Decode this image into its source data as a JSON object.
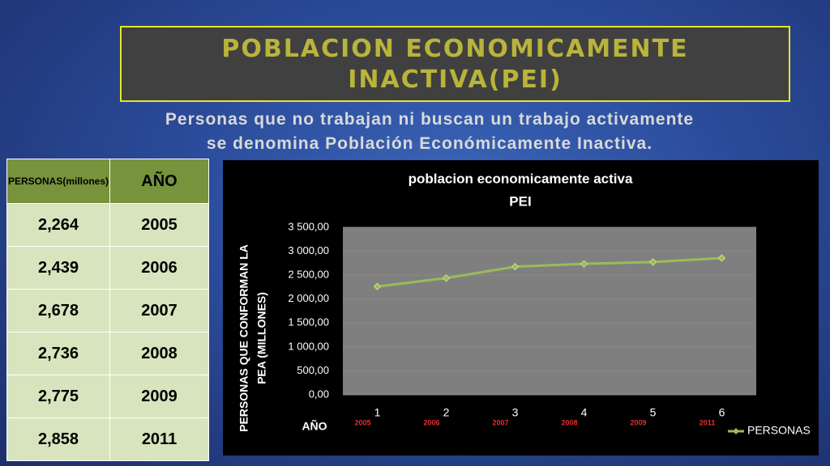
{
  "header": {
    "title": [
      "POBLACION ECONOMICAMENTE",
      "INACTIVA(PEI)"
    ],
    "subtitle": [
      "Personas que no trabajan ni buscan un trabajo activamente",
      "se denomina Población Económicamente Inactiva."
    ]
  },
  "table": {
    "header": [
      "PERSONAS(millones)",
      "AÑO"
    ],
    "rows": [
      [
        "2,264",
        "2005"
      ],
      [
        "2,439",
        "2006"
      ],
      [
        "2,678",
        "2007"
      ],
      [
        "2,736",
        "2008"
      ],
      [
        "2,775",
        "2009"
      ],
      [
        "2,858",
        "2011"
      ]
    ]
  },
  "chart_data": {
    "type": "line",
    "title": [
      "poblacion economicamente activa",
      "PEI"
    ],
    "y_label": [
      "PERSONAS QUE CONFORMAN LA",
      "PEA (MILLONES)"
    ],
    "x_label": "AÑO",
    "categories": [
      "1",
      "2",
      "3",
      "4",
      "5",
      "6"
    ],
    "category_notes": [
      "2005",
      "2006",
      "2007",
      "2008",
      "2009",
      "2011"
    ],
    "series": [
      {
        "name": "PERSONAS",
        "color": "#9bbb59",
        "values": [
          2264,
          2439,
          2678,
          2736,
          2775,
          2858
        ]
      }
    ],
    "ylim": [
      0,
      3500
    ],
    "yticks": [
      {
        "value": 0,
        "label": "0,00"
      },
      {
        "value": 500,
        "label": "500,00"
      },
      {
        "value": 1000,
        "label": "1 000,00"
      },
      {
        "value": 1500,
        "label": "1 500,00"
      },
      {
        "value": 2000,
        "label": "2 000,00"
      },
      {
        "value": 2500,
        "label": "2 500,00"
      },
      {
        "value": 3000,
        "label": "3 000,00"
      },
      {
        "value": 3500,
        "label": "3 500,00"
      }
    ],
    "grid": true,
    "legend": "bottom-right"
  }
}
